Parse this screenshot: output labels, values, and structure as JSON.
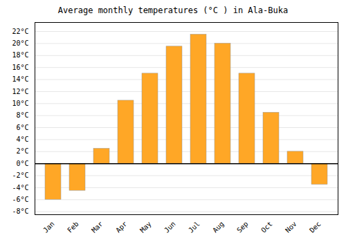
{
  "chart_data": {
    "type": "bar",
    "title": "Average monthly temperatures (°C ) in Ala-Buka",
    "categories": [
      "Jan",
      "Feb",
      "Mar",
      "Apr",
      "May",
      "Jun",
      "Jul",
      "Aug",
      "Sep",
      "Oct",
      "Nov",
      "Dec"
    ],
    "values": [
      -6,
      -4.5,
      2.5,
      10.5,
      15,
      19.5,
      21.5,
      20,
      15,
      8.5,
      2,
      -3.5
    ],
    "color": "#FFA726",
    "ylim": [
      -8.5,
      23.5
    ],
    "yticks": [
      {
        "value": -8,
        "label": "-8°C"
      },
      {
        "value": -6,
        "label": "-6°C"
      },
      {
        "value": -4,
        "label": "-4°C"
      },
      {
        "value": -2,
        "label": "-2°C"
      },
      {
        "value": 0,
        "label": "0°C"
      },
      {
        "value": 2,
        "label": "2°C"
      },
      {
        "value": 4,
        "label": "4°C"
      },
      {
        "value": 6,
        "label": "6°C"
      },
      {
        "value": 8,
        "label": "8°C"
      },
      {
        "value": 10,
        "label": "10°C"
      },
      {
        "value": 12,
        "label": "12°C"
      },
      {
        "value": 14,
        "label": "14°C"
      },
      {
        "value": 16,
        "label": "16°C"
      },
      {
        "value": 18,
        "label": "18°C"
      },
      {
        "value": 20,
        "label": "20°C"
      },
      {
        "value": 22,
        "label": "22°C"
      }
    ],
    "grid": true
  }
}
